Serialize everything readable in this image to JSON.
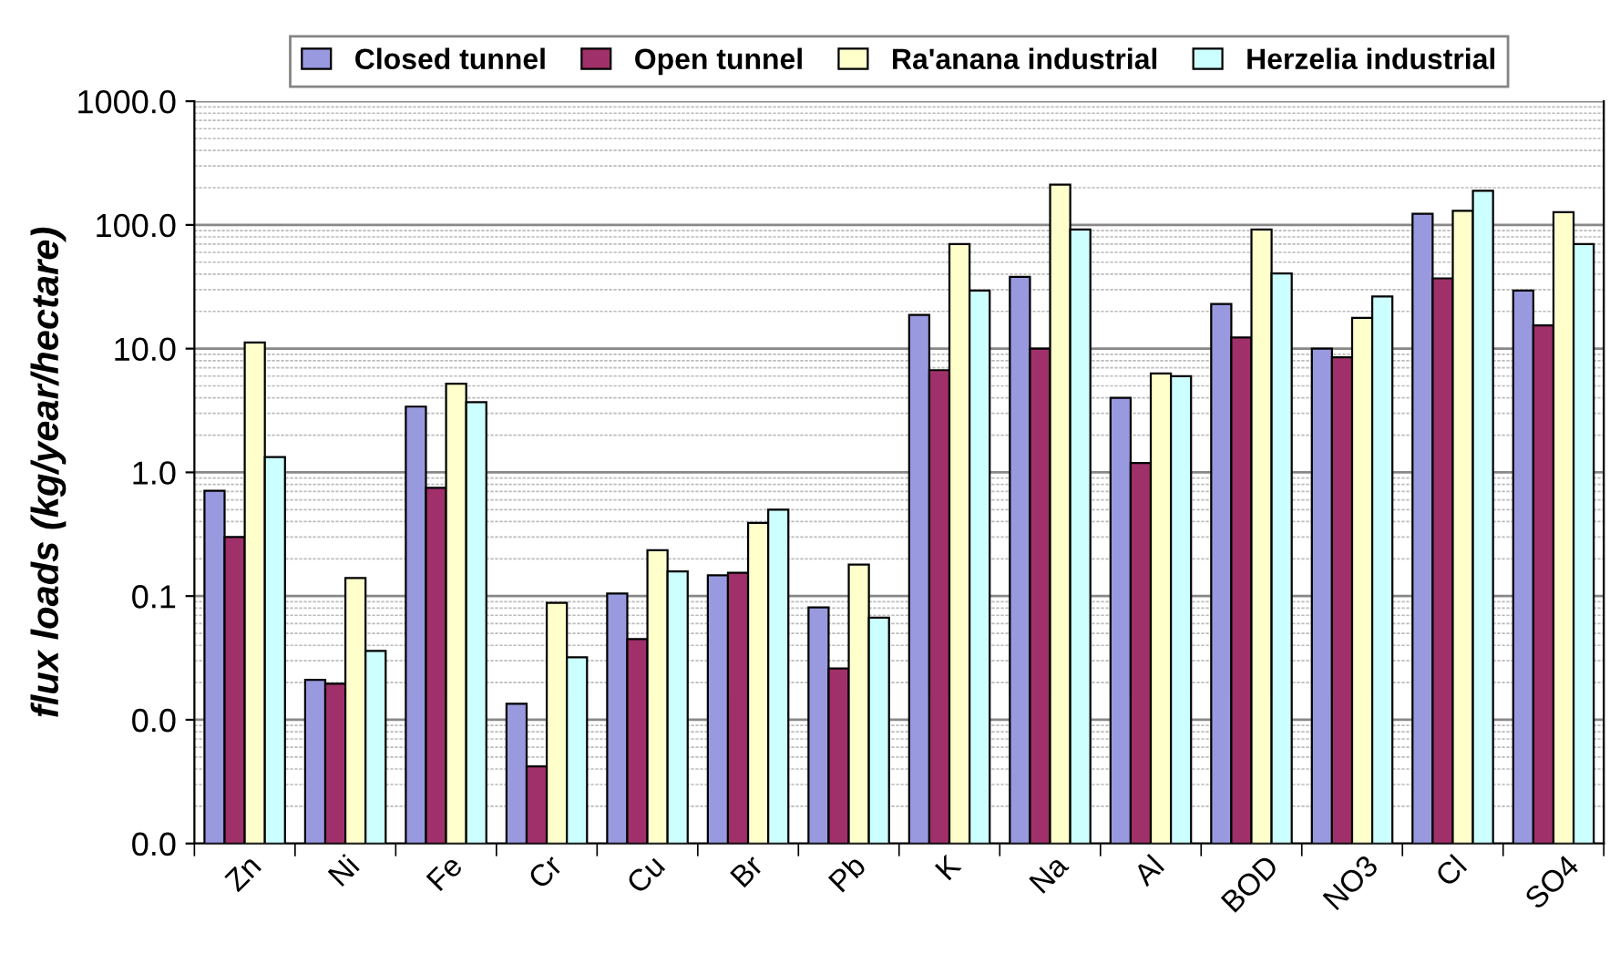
{
  "chart_data": {
    "type": "bar",
    "ylabel": "flux loads (kg/year/hectare)",
    "categories": [
      "Zn",
      "Ni",
      "Fe",
      "Cr",
      "Cu",
      "Br",
      "Pb",
      "K",
      "Na",
      "Al",
      "BOD",
      "NO3",
      "Cl",
      "SO4"
    ],
    "series": [
      {
        "name": "Closed tunnel",
        "color": "#9999e0",
        "values": [
          0.71,
          0.021,
          3.4,
          0.0135,
          0.105,
          0.147,
          0.081,
          18.7,
          38,
          4.0,
          23,
          10.0,
          123,
          29.5
        ]
      },
      {
        "name": "Open tunnel",
        "color": "#a0306a",
        "values": [
          0.3,
          0.0196,
          0.75,
          0.0042,
          0.045,
          0.154,
          0.026,
          6.7,
          10,
          1.19,
          12.3,
          8.5,
          37,
          15.4
        ]
      },
      {
        "name": "Ra'anana industrial",
        "color": "#ffffcc",
        "values": [
          11.2,
          0.14,
          5.2,
          0.088,
          0.235,
          0.39,
          0.18,
          70,
          212,
          6.3,
          92,
          17.7,
          130,
          127
        ]
      },
      {
        "name": "Herzelia industrial",
        "color": "#ccffff",
        "values": [
          1.33,
          0.036,
          3.7,
          0.032,
          0.158,
          0.5,
          0.067,
          29.5,
          92,
          6.0,
          40.6,
          26.4,
          189,
          70
        ]
      }
    ],
    "log": "y",
    "ylim": [
      0.001,
      1000
    ],
    "yticks": [
      {
        "value": 0.001,
        "label": "0.0"
      },
      {
        "value": 0.01,
        "label": "0.0"
      },
      0.1,
      {
        "value": 1,
        "label": "1.0"
      },
      {
        "value": 10,
        "label": "10.0"
      },
      {
        "value": 100,
        "label": "100.0"
      },
      {
        "value": 1000,
        "label": "1000.0"
      }
    ],
    "grid": "y",
    "legend": "top"
  }
}
